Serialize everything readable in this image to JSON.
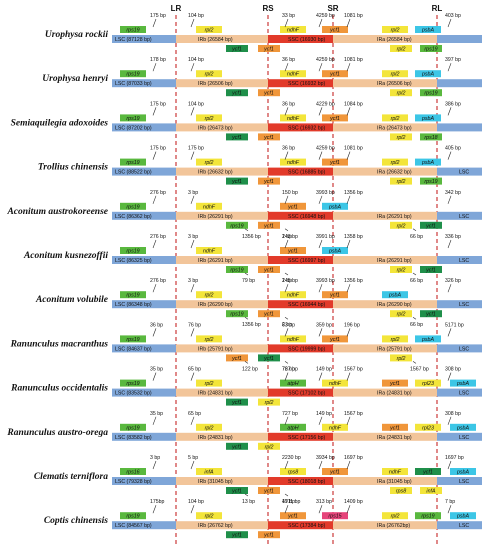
{
  "boundaries": [
    "LR",
    "RS",
    "SR",
    "RL"
  ],
  "colors": {
    "lsc": "#7fa6d8",
    "irb": "#f2c59a",
    "ssc": "#e23a2a",
    "ira": "#f2c59a",
    "gene_green": "#59b83e",
    "gene_yellow": "#f3e53a",
    "gene_dkgreen": "#1f8f4a",
    "gene_orange": "#f0963a",
    "gene_cyan": "#3cc6e6",
    "gene_pink": "#e6447a"
  },
  "rows": [
    {
      "species": "Urophysa rockii",
      "lsc": "LSC (87128 bp)",
      "irb": "IRb (26584 bp)",
      "ssc": "SSC (16930 bp)",
      "ira": "IRa (26584 bp)",
      "lsc_end": "",
      "genes_top": [
        [
          "rps19",
          "green"
        ],
        [
          "rpl2",
          "yellow"
        ],
        [
          "ndhF",
          "yellow"
        ],
        [
          "ycf1",
          "orange"
        ],
        [
          "rpl2",
          "yellow"
        ],
        [
          "psbA",
          "cyan"
        ]
      ],
      "genes_bottom": [
        [
          "ycf1",
          "dkgreen"
        ],
        [
          "ycf1",
          "orange"
        ],
        [
          "rpl2",
          "yellow"
        ],
        [
          "rps19",
          "green"
        ]
      ],
      "dists": [
        "175 bp",
        "104 bp",
        "33 bp",
        "4259 bp",
        "1081 bp",
        "403 bp"
      ]
    },
    {
      "species": "Urophysa henryi",
      "lsc": "LSC (87033 bp)",
      "irb": "IRb (26506 bp)",
      "ssc": "SSC (16932 bp)",
      "ira": "IRa (26506 bp)",
      "lsc_end": "",
      "genes_top": [
        [
          "rps19",
          "green"
        ],
        [
          "rpl2",
          "yellow"
        ],
        [
          "ndhF",
          "yellow"
        ],
        [
          "ycf1",
          "orange"
        ],
        [
          "rpl2",
          "yellow"
        ],
        [
          "psbA",
          "cyan"
        ]
      ],
      "genes_bottom": [
        [
          "ycf1",
          "dkgreen"
        ],
        [
          "ycf1",
          "orange"
        ],
        [
          "rpl2",
          "yellow"
        ],
        [
          "rps19",
          "green"
        ]
      ],
      "dists": [
        "178 bp",
        "104 bp",
        "36 bp",
        "4259 bp",
        "1081 bp",
        "397 bp"
      ]
    },
    {
      "species": "Semiaquilegia adoxoides",
      "lsc": "LSC (87202 bp)",
      "irb": "IRb (26473 bp)",
      "ssc": "SSC (16932 bp)",
      "ira": "IRa (26473 bp)",
      "lsc_end": "",
      "genes_top": [
        [
          "rps19",
          "green"
        ],
        [
          "rpl2",
          "yellow"
        ],
        [
          "ndhF",
          "yellow"
        ],
        [
          "ycf1",
          "orange"
        ],
        [
          "rpl2",
          "yellow"
        ],
        [
          "psbA",
          "cyan"
        ]
      ],
      "genes_bottom": [
        [
          "ycf1",
          "dkgreen"
        ],
        [
          "ycf1",
          "orange"
        ],
        [
          "rpl2",
          "yellow"
        ],
        [
          "rps18",
          "green"
        ]
      ],
      "dists": [
        "175 bp",
        "104 bp",
        "36 bp",
        "4229 bp",
        "1084 bp",
        "386 bp"
      ]
    },
    {
      "species": "Trollius chinensis",
      "lsc": "LSC (88522 bp)",
      "irb": "IRb (26632 bp)",
      "ssc": "SSC (16885 bp)",
      "ira": "IRa (26632 bp)",
      "lsc_end": "LSC",
      "genes_top": [
        [
          "rps19",
          "green"
        ],
        [
          "rpl2",
          "yellow"
        ],
        [
          "ndhF",
          "yellow"
        ],
        [
          "ycf1",
          "orange"
        ],
        [
          "rpl2",
          "yellow"
        ],
        [
          "psbA",
          "cyan"
        ]
      ],
      "genes_bottom": [
        [
          "ycf1",
          "dkgreen"
        ],
        [
          "ycf1",
          "orange"
        ],
        [
          "rpl2",
          "yellow"
        ],
        [
          "rps19",
          "green"
        ]
      ],
      "dists": [
        "175 bp",
        "175 bp",
        "36 bp",
        "4259 bp",
        "1081 bp",
        "405 bp"
      ]
    },
    {
      "species": "Aconitum austrokoreense",
      "lsc": "LSC (86362 bp)",
      "irb": "IRb (26291 bp)",
      "ssc": "SSC (16948 bp)",
      "ira": "IRa (26291 bp)",
      "lsc_end": "LSC",
      "genes_top": [
        [
          "rps19",
          "green"
        ],
        [
          "ndhF",
          "yellow"
        ],
        [
          "ycf1",
          "orange"
        ],
        [
          "psbA",
          "cyan"
        ]
      ],
      "genes_bottom": [
        [
          "rps19",
          "green"
        ],
        [
          "ycf1",
          "orange"
        ],
        [
          "rpl2",
          "yellow"
        ],
        [
          "ycf1",
          "dkgreen"
        ]
      ],
      "dists": [
        "276 bp",
        "3 bp",
        "150 bp",
        "3993 bp",
        "1356 bp",
        "342 bp",
        "1356 bp",
        "2 bp",
        "66 bp"
      ]
    },
    {
      "species": "Aconitum kusnezoffii",
      "lsc": "LSC (86325 bp)",
      "irb": "IRb (26291 bp)",
      "ssc": "SSC (16997 bp)",
      "ira": "IRa (26291 bp)",
      "lsc_end": "LSC",
      "genes_top": [
        [
          "rps19",
          "green"
        ],
        [
          "ndhF",
          "yellow"
        ],
        [
          "ycf1",
          "orange"
        ],
        [
          "psbA",
          "cyan"
        ]
      ],
      "genes_bottom": [
        [
          "rps19",
          "green"
        ],
        [
          "ycf1",
          "orange"
        ],
        [
          "rpl2",
          "yellow"
        ],
        [
          "ycf1",
          "dkgreen"
        ]
      ],
      "dists": [
        "276 bp",
        "3 bp",
        "143 bp",
        "3991 bp",
        "1358 bp",
        "336 bp",
        "79 bp",
        "2 bp",
        "66 bp"
      ]
    },
    {
      "species": "Aconitum volubile",
      "lsc": "LSC (86348 bp)",
      "irb": "IRb (26290 bp)",
      "ssc": "SSC (16944 bp)",
      "ira": "IRa (26290 bp)",
      "lsc_end": "LSC",
      "genes_top": [
        [
          "rps19",
          "green"
        ],
        [
          "rpl2",
          "yellow"
        ],
        [
          "ndhF",
          "yellow"
        ],
        [
          "ycf1",
          "orange"
        ],
        [
          "psbA",
          "cyan"
        ]
      ],
      "genes_bottom": [
        [
          "rps19",
          "green"
        ],
        [
          "ycf1",
          "orange"
        ],
        [
          "rpl2",
          "yellow"
        ],
        [
          "ycf1",
          "dkgreen"
        ]
      ],
      "dists": [
        "276 bp",
        "3 bp",
        "145 bp",
        "3993 bp",
        "1356 bp",
        "326 bp",
        "1356 bp",
        "2 bp",
        "66 bp"
      ]
    },
    {
      "species": "Ranunculus macranthus",
      "lsc": "LSC (84637 bp)",
      "irb": "IRb (25791 bp)",
      "ssc": "SSC (19999 bp)",
      "ira": "IRa (25791 bp)",
      "lsc_end": "LSC",
      "genes_top": [
        [
          "rps19",
          "green"
        ],
        [
          "rpl2",
          "yellow"
        ],
        [
          "ndhF",
          "yellow"
        ],
        [
          "ycf1",
          "orange"
        ],
        [
          "rpl2",
          "yellow"
        ],
        [
          "psbA",
          "cyan"
        ]
      ],
      "genes_bottom": [
        [
          "ycf1",
          "orange"
        ],
        [
          "ycf1",
          "dkgreen"
        ],
        [
          "rpl2",
          "yellow"
        ]
      ],
      "dists": [
        "36 bp",
        "76 bp",
        "63 bp",
        "359 bp",
        "196 bp",
        "5171 bp",
        "122 bp",
        "76 bp",
        "1567 bp"
      ]
    },
    {
      "species": "Ranunculus occidentalis",
      "lsc": "LSC (83532 bp)",
      "irb": "IRb (24831 bp)",
      "ssc": "SSC (17102 bp)",
      "ira": "IRa (24831 bp)",
      "lsc_end": "LSC",
      "genes_top": [
        [
          "rps19",
          "green"
        ],
        [
          "rpl2",
          "yellow"
        ],
        [
          "atpH",
          "green"
        ],
        [
          "ndhF",
          "yellow"
        ],
        [
          "ycf1",
          "orange"
        ],
        [
          "rpl23",
          "yellow"
        ],
        [
          "psbA",
          "cyan"
        ]
      ],
      "genes_bottom": [
        [
          "ycf1",
          "dkgreen"
        ],
        [
          "rpl2",
          "yellow"
        ]
      ],
      "dists": [
        "35 bp",
        "65 bp",
        "727 bp",
        "149 bp",
        "1567 bp",
        "308 bp"
      ]
    },
    {
      "species": "Ranunculus austro-orega",
      "lsc": "LSC (83582 bp)",
      "irb": "IRb (24831 bp)",
      "ssc": "SSC (17156 bp)",
      "ira": "IRa (24831 bp)",
      "lsc_end": "LSC",
      "genes_top": [
        [
          "rps19",
          "green"
        ],
        [
          "rpl2",
          "yellow"
        ],
        [
          "atpH",
          "green"
        ],
        [
          "ndhF",
          "yellow"
        ],
        [
          "ycf1",
          "orange"
        ],
        [
          "rpl23",
          "yellow"
        ],
        [
          "psbA",
          "cyan"
        ]
      ],
      "genes_bottom": [
        [
          "ycf1",
          "dkgreen"
        ],
        [
          "rpl2",
          "yellow"
        ]
      ],
      "dists": [
        "35 bp",
        "65 bp",
        "727 bp",
        "149 bp",
        "1567 bp",
        "308 bp"
      ]
    },
    {
      "species": "Clematis terniflora",
      "lsc": "LSC (79328 bp)",
      "irb": "IRb (31045 bp)",
      "ssc": "SSC (18018 bp)",
      "ira": "IRa (31045 bp)",
      "lsc_end": "LSC",
      "genes_top": [
        [
          "rps16",
          "green"
        ],
        [
          "infA",
          "yellow"
        ],
        [
          "rps8",
          "yellow"
        ],
        [
          "ycf1",
          "orange"
        ],
        [
          "ndhF",
          "yellow"
        ],
        [
          "ycf1",
          "dkgreen"
        ],
        [
          "psbA",
          "cyan"
        ]
      ],
      "genes_bottom": [
        [
          "ycf1",
          "dkgreen"
        ],
        [
          "ycf1",
          "orange"
        ],
        [
          "rps8",
          "yellow"
        ],
        [
          "infA",
          "yellow"
        ]
      ],
      "dists": [
        "3 bp",
        "5 bp",
        "2230 bp",
        "3934 bp",
        "1697 bp",
        "1697 bp",
        "13 bp",
        "19 bp"
      ]
    },
    {
      "species": "Coptis chinensis",
      "lsc": "LSC (84567 bp)",
      "irb": "IRb (26762 bp)",
      "ssc": "SSC (17384 bp)",
      "ira": "IRa (26762bp)",
      "lsc_end": "LSC",
      "genes_top": [
        [
          "rps19",
          "green"
        ],
        [
          "rpl2",
          "yellow"
        ],
        [
          "ycf1",
          "orange"
        ],
        [
          "rps15",
          "pink"
        ],
        [
          "rpl2",
          "yellow"
        ],
        [
          "rps19",
          "green"
        ],
        [
          "psbA",
          "cyan"
        ]
      ],
      "genes_bottom": [
        [
          "ycf1",
          "dkgreen"
        ],
        [
          "ycf1",
          "orange"
        ]
      ],
      "dists": [
        "175bp",
        "104 bp",
        "4711 bp",
        "313 bp",
        "1409 bp",
        "7 bp"
      ]
    }
  ]
}
